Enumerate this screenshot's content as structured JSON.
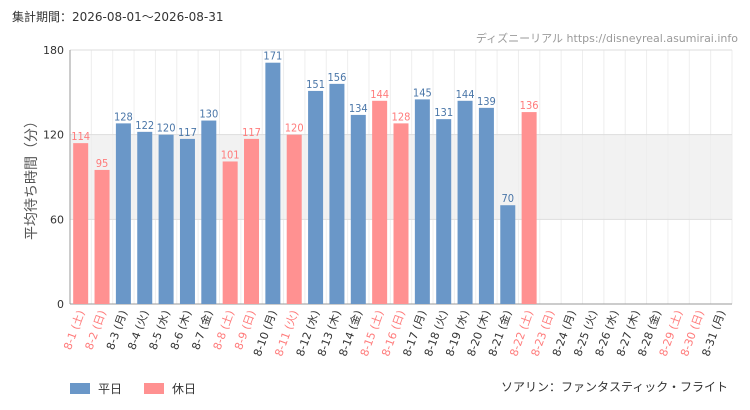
{
  "header": {
    "period": "集計期間：2026-08-01～2026-08-31",
    "source": "ディズニーリアル https://disneyreal.asumirai.info"
  },
  "footer": {
    "attraction": "ソアリン：ファンタスティック・フライト"
  },
  "colors": {
    "weekday": "#6a97c8",
    "holiday": "#ff9191",
    "holiday_label": "#ff7b7b",
    "weekday_label": "#4a76a8",
    "band": "#f2f2f2",
    "grid": "#dddddd"
  },
  "chart_data": {
    "type": "bar",
    "ylabel": "平均待ち時間（分）",
    "ylim": [
      0,
      180
    ],
    "yticks": [
      0,
      60,
      120,
      180
    ],
    "shaded_band": [
      60,
      120
    ],
    "categories": [
      "8-1 (土)",
      "8-2 (日)",
      "8-3 (月)",
      "8-4 (火)",
      "8-5 (水)",
      "8-6 (木)",
      "8-7 (金)",
      "8-8 (土)",
      "8-9 (日)",
      "8-10 (月)",
      "8-11 (火)",
      "8-12 (水)",
      "8-13 (木)",
      "8-14 (金)",
      "8-15 (土)",
      "8-16 (日)",
      "8-17 (月)",
      "8-18 (火)",
      "8-19 (水)",
      "8-20 (木)",
      "8-21 (金)",
      "8-22 (土)",
      "8-23 (日)",
      "8-24 (月)",
      "8-25 (火)",
      "8-26 (水)",
      "8-27 (木)",
      "8-28 (金)",
      "8-29 (土)",
      "8-30 (日)",
      "8-31 (月)"
    ],
    "holiday": [
      true,
      true,
      false,
      false,
      false,
      false,
      false,
      true,
      true,
      false,
      true,
      false,
      false,
      false,
      true,
      true,
      false,
      false,
      false,
      false,
      false,
      true,
      true,
      false,
      false,
      false,
      false,
      false,
      true,
      true,
      false
    ],
    "values": [
      114,
      95,
      128,
      122,
      120,
      117,
      130,
      101,
      117,
      171,
      120,
      151,
      156,
      134,
      144,
      128,
      145,
      131,
      144,
      139,
      70,
      136,
      null,
      null,
      null,
      null,
      null,
      null,
      null,
      null,
      null
    ],
    "series": [
      {
        "name": "平日",
        "color": "#6a97c8"
      },
      {
        "name": "休日",
        "color": "#ff9191"
      }
    ]
  }
}
